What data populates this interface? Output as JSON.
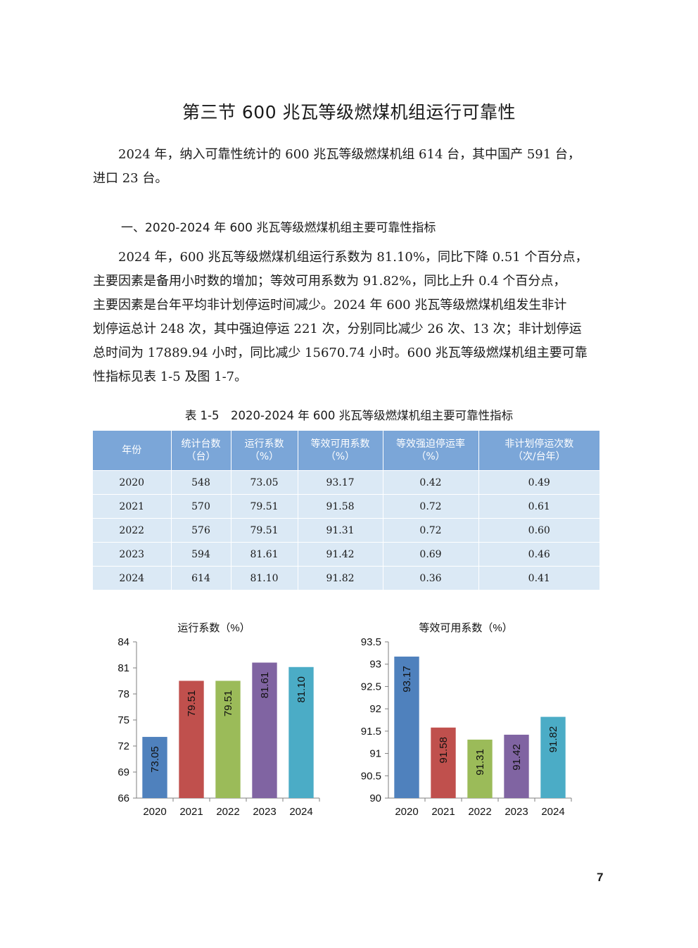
{
  "page": {
    "title": "第三节 600 兆瓦等级燃煤机组运行可靠性",
    "intro": [
      "2024 年，纳入可靠性统计的 600 兆瓦等级燃煤机组 614 台，其中国产 591 台，",
      "进口 23 台。"
    ],
    "section_heading": "一、2020-2024 年 600 兆瓦等级燃煤机组主要可靠性指标",
    "body": [
      "2024 年，600 兆瓦等级燃煤机组运行系数为 81.10%，同比下降 0.51 个百分点，",
      "主要因素是备用小时数的增加；等效可用系数为 91.82%，同比上升 0.4 个百分点，",
      "主要因素是台年平均非计划停运时间减少。2024 年 600 兆瓦等级燃煤机组发生非计",
      "划停运总计 248 次，其中强迫停运 221 次，分别同比减少 26 次、13 次；非计划停运",
      "总时间为 17889.94 小时，同比减少 15670.74 小时。600 兆瓦等级燃煤机组主要可靠",
      "性指标见表 1-5 及图 1-7。"
    ],
    "page_number": "7"
  },
  "table": {
    "caption": "表 1-5　2020-2024 年 600 兆瓦等级燃煤机组主要可靠性指标",
    "headers": [
      [
        "年份",
        ""
      ],
      [
        "统计台数",
        "（台）"
      ],
      [
        "运行系数",
        "（%）"
      ],
      [
        "等效可用系数",
        "（%）"
      ],
      [
        "等效强迫停运率",
        "（%）"
      ],
      [
        "非计划停运次数",
        "（次/台年）"
      ]
    ],
    "rows": [
      [
        "2020",
        "548",
        "73.05",
        "93.17",
        "0.42",
        "0.49"
      ],
      [
        "2021",
        "570",
        "79.51",
        "91.58",
        "0.72",
        "0.61"
      ],
      [
        "2022",
        "576",
        "79.51",
        "91.31",
        "0.72",
        "0.60"
      ],
      [
        "2023",
        "594",
        "81.61",
        "91.42",
        "0.69",
        "0.46"
      ],
      [
        "2024",
        "614",
        "81.10",
        "91.82",
        "0.36",
        "0.41"
      ]
    ]
  },
  "chart_data": [
    {
      "type": "bar",
      "title": "运行系数（%）",
      "categories": [
        "2020",
        "2021",
        "2022",
        "2023",
        "2024"
      ],
      "values": [
        73.05,
        79.51,
        79.51,
        81.61,
        81.1
      ],
      "labels": [
        "73.05",
        "79.51",
        "79.51",
        "81.61",
        "81.10"
      ],
      "ylim": [
        66,
        84
      ],
      "yticks": [
        "84",
        "81",
        "78",
        "75",
        "72",
        "69",
        "66"
      ],
      "colors": [
        "#4f81bd",
        "#c0504d",
        "#9bbb59",
        "#8064a2",
        "#4bacc6"
      ],
      "grid": false,
      "legend": "none"
    },
    {
      "type": "bar",
      "title": "等效可用系数（%）",
      "categories": [
        "2020",
        "2021",
        "2022",
        "2023",
        "2024"
      ],
      "values": [
        93.17,
        91.58,
        91.31,
        91.42,
        91.82
      ],
      "labels": [
        "93.17",
        "91.58",
        "91.31",
        "91.42",
        "91.82"
      ],
      "ylim": [
        90,
        93.5
      ],
      "yticks": [
        "93.5",
        "93",
        "92.5",
        "92",
        "91.5",
        "91",
        "90.5",
        "90"
      ],
      "colors": [
        "#4f81bd",
        "#c0504d",
        "#9bbb59",
        "#8064a2",
        "#4bacc6"
      ],
      "grid": false,
      "legend": "none"
    }
  ]
}
